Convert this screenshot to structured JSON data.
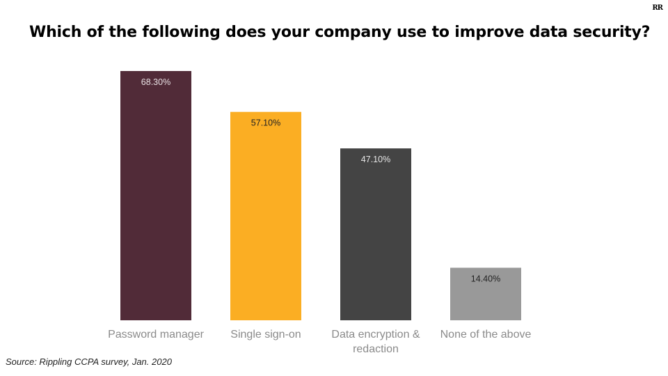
{
  "brand": {
    "logo_text": "RR"
  },
  "title": "Which of the following does your company use to improve data security?",
  "source": "Source: Rippling CCPA survey, Jan. 2020",
  "chart_data": {
    "type": "bar",
    "title": "Which of the following does your company use to improve data security?",
    "categories": [
      [
        "Password manager"
      ],
      [
        "Single sign-on"
      ],
      [
        "Data encryption &",
        "redaction"
      ],
      [
        "None of the above"
      ]
    ],
    "values": [
      68.3,
      57.1,
      47.1,
      14.4
    ],
    "value_labels": [
      "68.30%",
      "57.10%",
      "47.10%",
      "14.40%"
    ],
    "colors": [
      "#512b38",
      "#fbae23",
      "#444444",
      "#999999"
    ],
    "label_colors": [
      "#e8e0e3",
      "#222222",
      "#e6e6e6",
      "#222222"
    ],
    "unit": "%",
    "xlabel": "",
    "ylabel": "",
    "ylim": [
      0,
      70
    ],
    "grid": false,
    "legend": "none"
  }
}
